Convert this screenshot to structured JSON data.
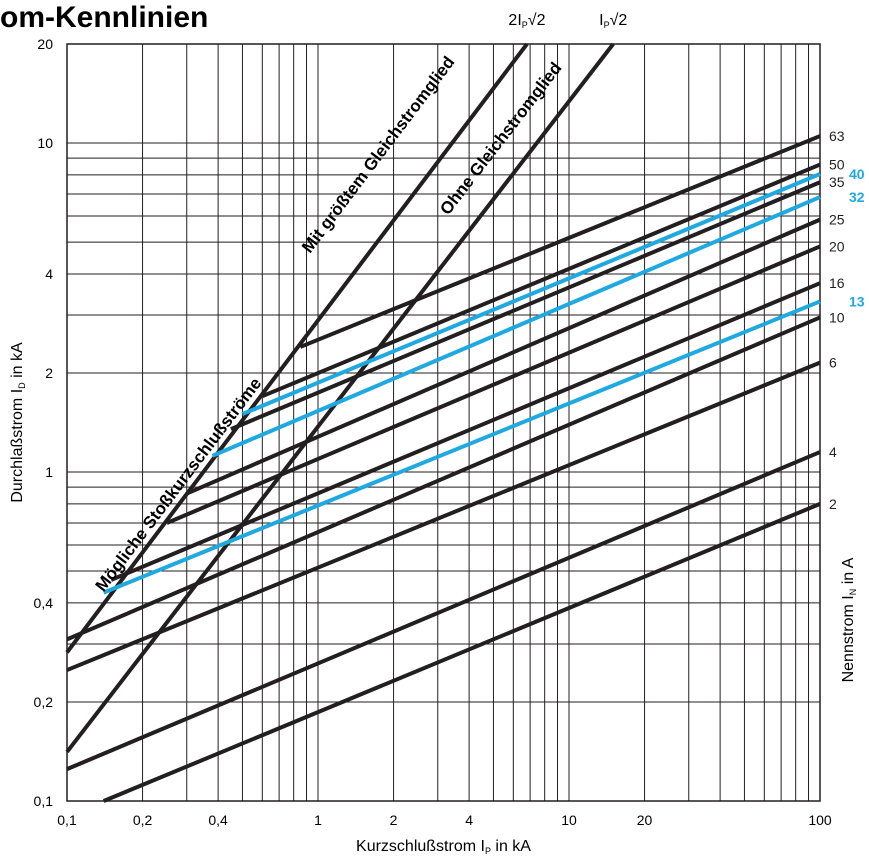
{
  "colors": {
    "black": "#231f20",
    "blue": "#1fa9e1",
    "grid": "#231f20"
  },
  "chart_data": {
    "type": "line",
    "title": "om-Kennlinien",
    "xlabel": "Kurzschlußstrom  I",
    "xlabel_sub": "P",
    "xlabel_unit": " in kA",
    "ylabel": "Durchlaßstrom  I",
    "ylabel_sub": "D",
    "ylabel_unit": " in kA",
    "rlabel": "Nennstrom  I",
    "rlabel_sub": "N",
    "rlabel_unit": " in A",
    "xscale": "log",
    "yscale": "log",
    "xlim": [
      0.1,
      100
    ],
    "ylim": [
      0.1,
      20
    ],
    "grid": true,
    "x_ticks": [
      {
        "v": 0.1,
        "t": "0,1"
      },
      {
        "v": 0.2,
        "t": "0,2"
      },
      {
        "v": 0.4,
        "t": "0,4"
      },
      {
        "v": 1,
        "t": "1"
      },
      {
        "v": 2,
        "t": "2"
      },
      {
        "v": 4,
        "t": "4"
      },
      {
        "v": 10,
        "t": "10"
      },
      {
        "v": 20,
        "t": "20"
      },
      {
        "v": 100,
        "t": "100"
      }
    ],
    "y_ticks": [
      {
        "v": 0.1,
        "t": "0,1"
      },
      {
        "v": 0.2,
        "t": "0,2"
      },
      {
        "v": 0.4,
        "t": "0,4"
      },
      {
        "v": 1,
        "t": "1"
      },
      {
        "v": 2,
        "t": "2"
      },
      {
        "v": 4,
        "t": "4"
      },
      {
        "v": 10,
        "t": "10"
      },
      {
        "v": 20,
        "t": "20"
      }
    ],
    "reference_lines": [
      {
        "name": "Mit größtem Gleichstromglied",
        "top_label": "2I",
        "top_sub": "P",
        "top_tail": "√2",
        "x": [
          0.1,
          6.8
        ],
        "y": [
          0.283,
          20
        ]
      },
      {
        "name": "Ohne Gleichstromglied",
        "top_label": "I",
        "top_sub": "P",
        "top_tail": "√2",
        "x": [
          0.1,
          15
        ],
        "y": [
          0.141,
          20
        ]
      }
    ],
    "series": [
      {
        "name": "63",
        "color": "black",
        "highlight": false,
        "x": [
          0.85,
          100
        ],
        "y": [
          2.4,
          10.5
        ]
      },
      {
        "name": "50",
        "color": "black",
        "highlight": false,
        "x": [
          0.6,
          100
        ],
        "y": [
          1.7,
          8.6
        ]
      },
      {
        "name": "40",
        "color": "blue",
        "highlight": true,
        "x": [
          0.5,
          100
        ],
        "y": [
          1.5,
          8.05
        ]
      },
      {
        "name": "35",
        "color": "black",
        "highlight": false,
        "x": [
          0.45,
          100
        ],
        "y": [
          1.35,
          7.6
        ]
      },
      {
        "name": "32",
        "color": "blue",
        "highlight": true,
        "x": [
          0.38,
          100
        ],
        "y": [
          1.12,
          6.85
        ]
      },
      {
        "name": "25",
        "color": "black",
        "highlight": false,
        "x": [
          0.3,
          100
        ],
        "y": [
          0.86,
          5.85
        ]
      },
      {
        "name": "20",
        "color": "black",
        "highlight": false,
        "x": [
          0.25,
          100
        ],
        "y": [
          0.7,
          4.85
        ]
      },
      {
        "name": "16",
        "color": "black",
        "highlight": false,
        "x": [
          0.15,
          100
        ],
        "y": [
          0.47,
          3.75
        ]
      },
      {
        "name": "13",
        "color": "blue",
        "highlight": true,
        "x": [
          0.14,
          100
        ],
        "y": [
          0.43,
          3.3
        ]
      },
      {
        "name": "10",
        "color": "black",
        "highlight": false,
        "x": [
          0.1,
          100
        ],
        "y": [
          0.31,
          2.95
        ]
      },
      {
        "name": "6",
        "color": "black",
        "highlight": false,
        "x": [
          0.1,
          100
        ],
        "y": [
          0.25,
          2.15
        ]
      },
      {
        "name": "4",
        "color": "black",
        "highlight": false,
        "x": [
          0.1,
          100
        ],
        "y": [
          0.125,
          1.15
        ]
      },
      {
        "name": "2",
        "color": "black",
        "highlight": false,
        "x": [
          0.14,
          100
        ],
        "y": [
          0.1,
          0.8
        ]
      }
    ],
    "diagonal_texts": [
      {
        "text": "Mögliche Stoßkurzschlußströme",
        "x": 0.14,
        "y": 0.43,
        "align_to": 0
      },
      {
        "text": "Mit größtem Gleichstromglied",
        "x": 0.93,
        "y": 4.6,
        "align_to": 0
      },
      {
        "text": "Ohne Gleichstromglied",
        "x": 3.3,
        "y": 6.0,
        "align_to": 1
      }
    ]
  }
}
